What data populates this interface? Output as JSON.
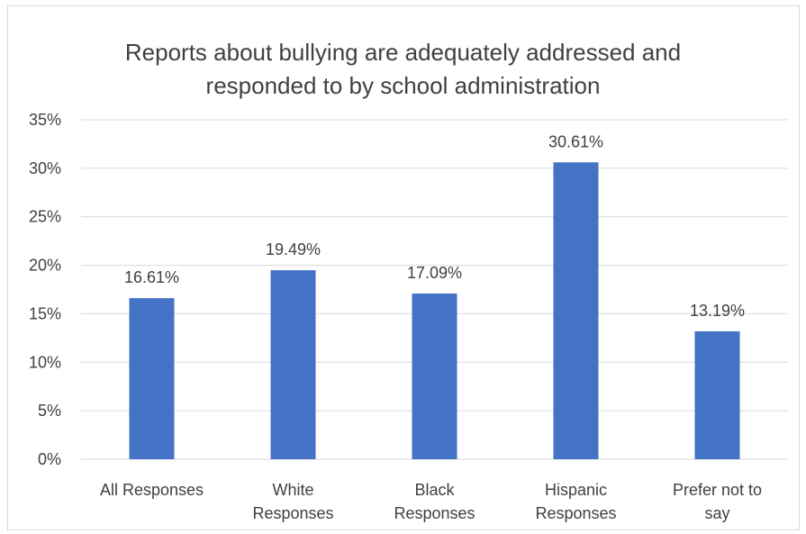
{
  "chart_data": {
    "type": "bar",
    "title_lines": [
      "Reports about bullying are adequately addressed and",
      "responded to by school administration"
    ],
    "categories": [
      [
        "All Responses"
      ],
      [
        "White",
        "Responses"
      ],
      [
        "Black",
        "Responses"
      ],
      [
        "Hispanic",
        "Responses"
      ],
      [
        "Prefer not to",
        "say"
      ]
    ],
    "values": [
      16.61,
      19.49,
      17.09,
      30.61,
      13.19
    ],
    "data_labels": [
      "16.61%",
      "19.49%",
      "17.09%",
      "30.61%",
      "13.19%"
    ],
    "yticks": [
      "0%",
      "5%",
      "10%",
      "15%",
      "20%",
      "25%",
      "30%",
      "35%"
    ],
    "ylim": [
      0,
      35
    ],
    "grid": true,
    "bar_color": "#4472c4",
    "grid_color": "#d9d9d9"
  }
}
